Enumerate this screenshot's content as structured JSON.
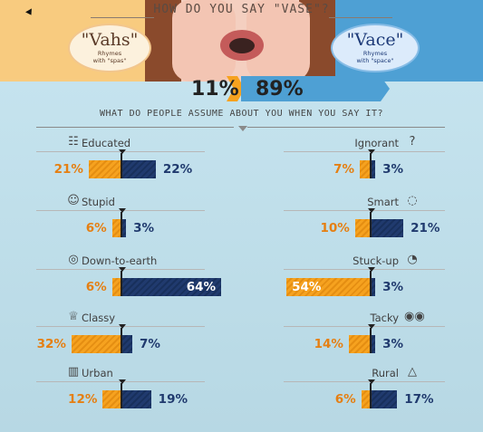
{
  "header": {
    "title": "HOW DO YOU SAY \"VASE\"?",
    "subtitle": "WHAT DO PEOPLE ASSUME ABOUT YOU WHEN YOU SAY IT?"
  },
  "pronunciations": {
    "vahs": {
      "word": "\"Vahs\"",
      "line1": "Rhymes",
      "line2": "with \"spas\"",
      "share_label": "11%"
    },
    "vace": {
      "word": "\"Vace\"",
      "line1": "Rhymes",
      "line2": "with \"space\"",
      "share_label": "89%"
    }
  },
  "colors": {
    "vahs": "#f6a21f",
    "vace": "#203a6e"
  },
  "chart_data": {
    "type": "bar",
    "title": "HOW DO YOU SAY \"VASE\"?",
    "subtitle": "WHAT DO PEOPLE ASSUME ABOUT YOU WHEN YOU SAY IT?",
    "pronunciation_share": {
      "vahs": 11,
      "vace": 89
    },
    "traits": [
      {
        "name": "Educated",
        "icon": "book-icon",
        "vahs": 21,
        "vace": 22,
        "vahs_label": "21%",
        "vace_label": "22%"
      },
      {
        "name": "Stupid",
        "icon": "tongue-face-icon",
        "vahs": 6,
        "vace": 3,
        "vahs_label": "6%",
        "vace_label": "3%"
      },
      {
        "name": "Down-to-earth",
        "icon": "globe-icon",
        "vahs": 6,
        "vace": 64,
        "vahs_label": "6%",
        "vace_label": "64%"
      },
      {
        "name": "Classy",
        "icon": "crown-icon",
        "vahs": 32,
        "vace": 7,
        "vahs_label": "32%",
        "vace_label": "7%"
      },
      {
        "name": "Urban",
        "icon": "building-icon",
        "vahs": 12,
        "vace": 19,
        "vahs_label": "12%",
        "vace_label": "19%"
      },
      {
        "name": "Ignorant",
        "icon": "question-icon",
        "vahs": 7,
        "vace": 3,
        "vahs_label": "7%",
        "vace_label": "3%"
      },
      {
        "name": "Smart",
        "icon": "lightbulb-icon",
        "vahs": 10,
        "vace": 21,
        "vahs_label": "10%",
        "vace_label": "21%"
      },
      {
        "name": "Stuck-up",
        "icon": "head-icon",
        "vahs": 54,
        "vace": 3,
        "vahs_label": "54%",
        "vace_label": "3%"
      },
      {
        "name": "Tacky",
        "icon": "eyes-icon",
        "vahs": 14,
        "vace": 3,
        "vahs_label": "14%",
        "vace_label": "3%"
      },
      {
        "name": "Rural",
        "icon": "mountain-icon",
        "vahs": 6,
        "vace": 17,
        "vahs_label": "6%",
        "vace_label": "17%"
      }
    ],
    "series": [
      {
        "name": "Vahs",
        "color": "#f6a21f"
      },
      {
        "name": "Vace",
        "color": "#203a6e"
      }
    ]
  }
}
